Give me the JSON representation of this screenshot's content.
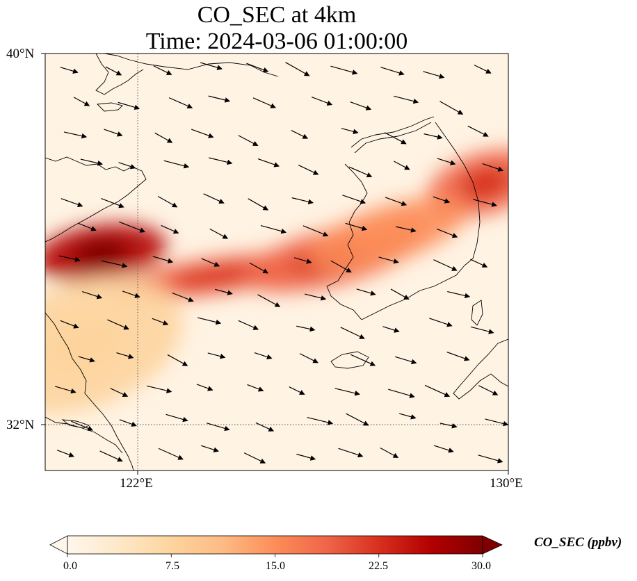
{
  "title": {
    "line1": "CO_SEC at 4km",
    "line2": "Time: 2024-03-06 01:00:00"
  },
  "map": {
    "lon_range": [
      120,
      130
    ],
    "lat_range": [
      31,
      40
    ],
    "lat_ticks": [
      "40°N",
      "32°N"
    ],
    "lon_ticks": [
      "122°E",
      "130°E"
    ],
    "gridlines": {
      "lon": 122,
      "lat": 32,
      "style": "dotted"
    },
    "plumes": [
      {
        "name": "north-china-coast",
        "lon": 121.2,
        "lat": 35.7,
        "value": 27
      },
      {
        "name": "yellow-sea",
        "lon": 123.7,
        "lat": 35.2,
        "value": 19
      },
      {
        "name": "korea-west",
        "lon": 126.2,
        "lat": 35.6,
        "value": 20
      },
      {
        "name": "korea-east",
        "lon": 129.5,
        "lat": 37.2,
        "value": 20
      },
      {
        "name": "korea-central",
        "lon": 127.4,
        "lat": 36.1,
        "value": 14
      },
      {
        "name": "east-china-sea",
        "lon": 120.8,
        "lat": 33.7,
        "value": 8
      }
    ],
    "wind_direction": "west-northwest"
  },
  "colorbar": {
    "colormap": "OrRd",
    "min": 0.0,
    "max": 30.0,
    "ticks": [
      "0.0",
      "7.5",
      "15.0",
      "22.5",
      "30.0"
    ],
    "extend": "both",
    "label": "CO_SEC (ppbv)",
    "colors": [
      "#fff7ec",
      "#fee8c8",
      "#fdd49e",
      "#fdbb84",
      "#fc8d59",
      "#ef6548",
      "#d7301f",
      "#b30000",
      "#7f0000"
    ]
  }
}
